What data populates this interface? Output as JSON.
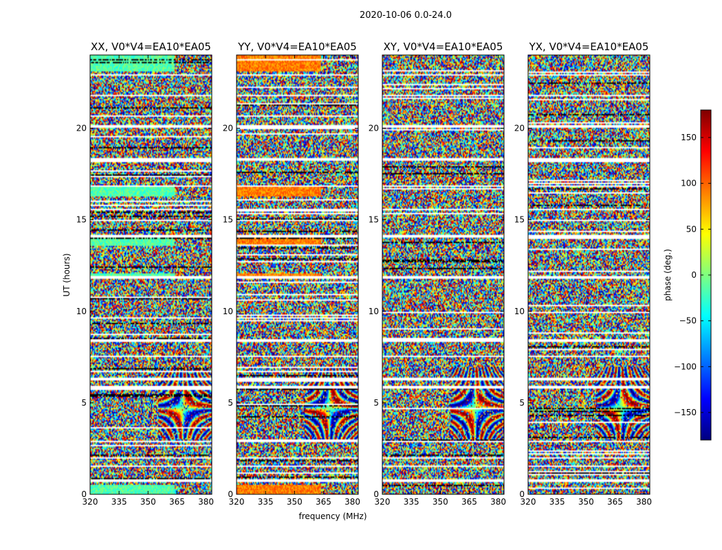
{
  "figure": {
    "suptitle": "2020-10-06 0.0-24.0",
    "xlabel": "frequency (MHz)",
    "ylabel": "UT (hours)",
    "colorbar_label": "phase (deg.)"
  },
  "chart_data": {
    "type": "heatmap",
    "title": "2020-10-06 0.0-24.0",
    "xlabel": "frequency (MHz)",
    "ylabel": "UT (hours)",
    "xlim": [
      320,
      383
    ],
    "ylim": [
      0,
      24
    ],
    "xticks": [
      320,
      335,
      350,
      365,
      380
    ],
    "yticks": [
      0,
      5,
      10,
      15,
      20
    ],
    "colorbar": {
      "label": "phase (deg.)",
      "range": [
        -180,
        180
      ],
      "ticks": [
        150,
        100,
        50,
        0,
        -50,
        -100,
        -150
      ],
      "tick_labels": [
        "150",
        "100",
        "50",
        "0",
        "−50",
        "−100",
        "−150"
      ],
      "colormap": [
        "#00007f",
        "#0000ff",
        "#007fff",
        "#00ffff",
        "#7fff7f",
        "#ffff00",
        "#ff7f00",
        "#ff0000",
        "#7f0000"
      ]
    },
    "panels": [
      {
        "title": "XX, V0*V4=EA10*EA05",
        "polarization": "XX",
        "coherent_phase_deg": -15
      },
      {
        "title": "YY, V0*V4=EA10*EA05",
        "polarization": "YY",
        "coherent_phase_deg": 90
      },
      {
        "title": "XY, V0*V4=EA10*EA05",
        "polarization": "XY",
        "coherent_phase_deg": null
      },
      {
        "title": "YX, V0*V4=EA10*EA05",
        "polarization": "YX",
        "coherent_phase_deg": null
      }
    ],
    "flagged_ut_hours": [
      0.75,
      1.55,
      2.0,
      2.9,
      5.85,
      6.3,
      7.55,
      8.4,
      11.85,
      14.1,
      15.55,
      16.85,
      18.3,
      20.1,
      21.8,
      22.9
    ]
  }
}
